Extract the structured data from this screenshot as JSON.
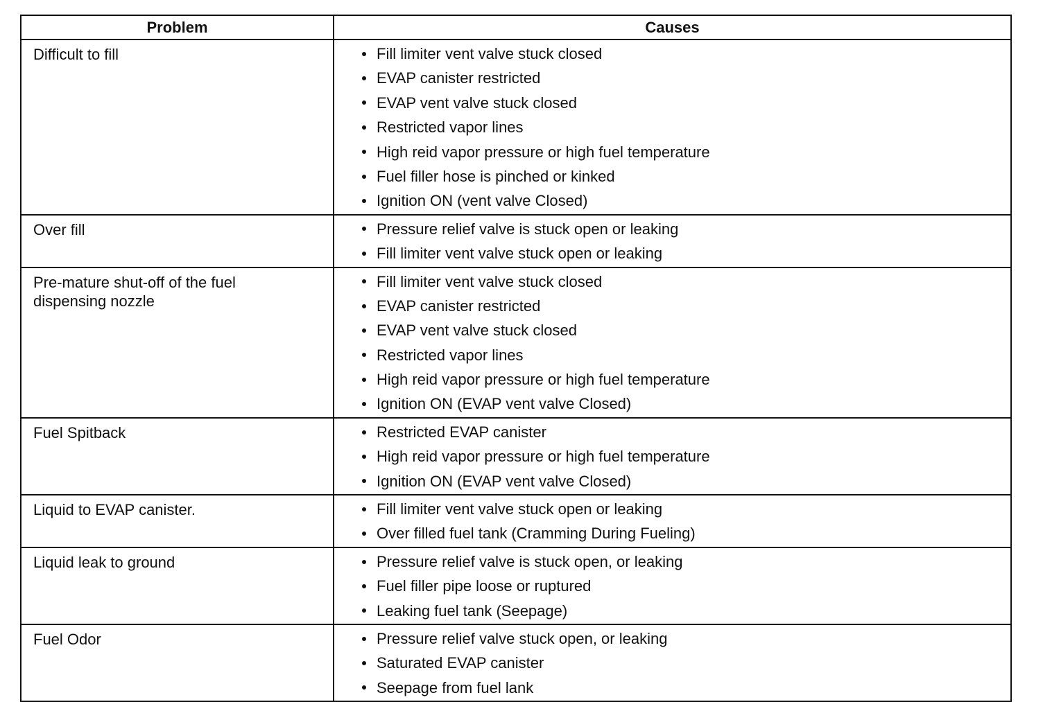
{
  "table": {
    "header": [
      "Problem",
      "Causes"
    ],
    "rows": [
      {
        "problem": "Difficult to fill",
        "causes": [
          "Fill limiter vent valve stuck closed",
          "EVAP canister restricted",
          "EVAP vent valve stuck closed",
          "Restricted vapor lines",
          "High reid vapor pressure or high fuel temperature",
          "Fuel filler hose is pinched or kinked",
          "Ignition ON (vent valve Closed)"
        ]
      },
      {
        "problem": "Over fill",
        "causes": [
          "Pressure relief valve is stuck open or leaking",
          "Fill limiter vent valve stuck open or leaking"
        ]
      },
      {
        "problem": "Pre-mature shut-off of the fuel dispensing nozzle",
        "causes": [
          "Fill limiter vent valve stuck closed",
          "EVAP canister restricted",
          "EVAP vent valve stuck closed",
          "Restricted vapor lines",
          "High reid vapor pressure or high fuel temperature",
          "Ignition ON (EVAP vent valve Closed)"
        ]
      },
      {
        "problem": "Fuel Spitback",
        "causes": [
          "Restricted EVAP canister",
          "High reid vapor pressure or high fuel temperature",
          "Ignition ON (EVAP vent valve Closed)"
        ]
      },
      {
        "problem": "Liquid to EVAP canister.",
        "causes": [
          "Fill limiter vent valve stuck open or leaking",
          "Over filled fuel tank (Cramming During Fueling)"
        ]
      },
      {
        "problem": "Liquid leak to ground",
        "causes": [
          "Pressure relief valve is stuck open, or leaking",
          "Fuel filler pipe loose or ruptured",
          "Leaking fuel tank (Seepage)"
        ]
      },
      {
        "problem": "Fuel Odor",
        "causes": [
          "Pressure relief valve stuck open, or leaking",
          "Saturated EVAP canister",
          "Seepage from fuel lank"
        ]
      }
    ]
  }
}
